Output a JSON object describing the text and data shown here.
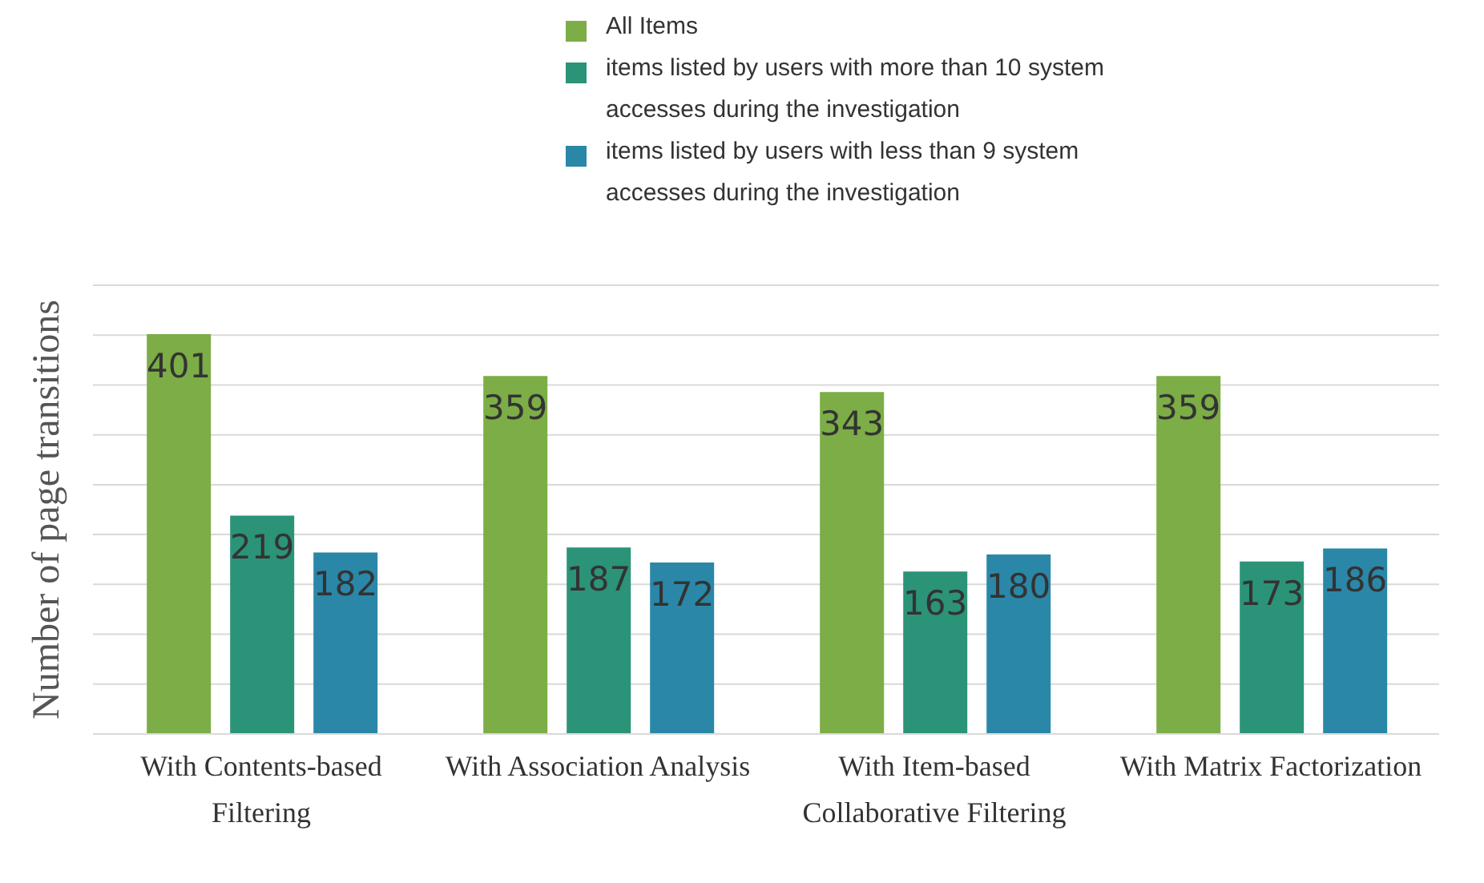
{
  "chart_data": {
    "type": "bar",
    "ylabel": "Number of page transitions",
    "categories": [
      "With Contents-based Filtering",
      "With Association Analysis",
      "With Item-based Collaborative Filtering",
      "With Matrix Factorization"
    ],
    "series": [
      {
        "name": "All Items",
        "color": "#7cad46",
        "values": [
          401,
          359,
          343,
          359
        ]
      },
      {
        "name": "items listed by users with more than 10 system accesses during the investigation",
        "color": "#2b9378",
        "values": [
          219,
          187,
          163,
          173
        ]
      },
      {
        "name": "items listed by users with less than 9 system accesses during the investigation",
        "color": "#2a87a8",
        "values": [
          182,
          172,
          180,
          186
        ]
      }
    ],
    "ylim": [
      0,
      450
    ],
    "tick_labels": "x",
    "grid": "y",
    "legend": "top",
    "data_labels": true
  }
}
